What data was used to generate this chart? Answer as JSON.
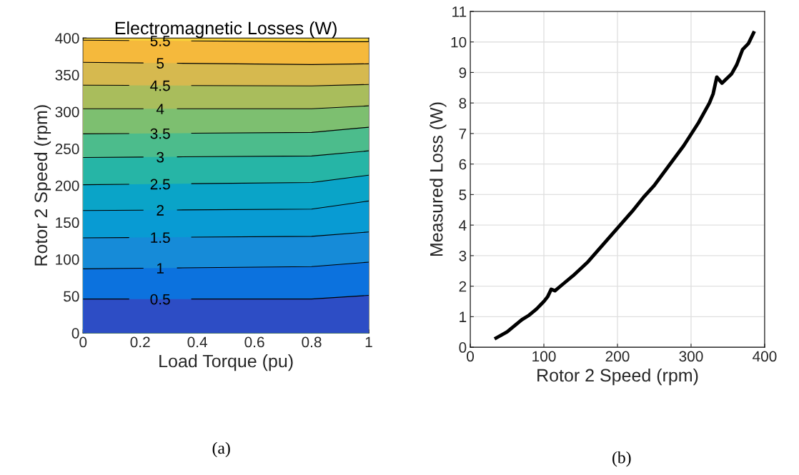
{
  "chart_data": [
    {
      "type": "area",
      "title": "Electromagnetic Losses (W)",
      "xlabel": "Load Torque (pu)",
      "ylabel": "Rotor 2 Speed (rpm)",
      "x": [
        0,
        0.8,
        1
      ],
      "xlim": [
        0,
        1
      ],
      "ylim": [
        0,
        400
      ],
      "xticks": [
        0,
        0.2,
        0.4,
        0.6,
        0.8,
        1
      ],
      "yticks": [
        0,
        50,
        100,
        150,
        200,
        250,
        300,
        350,
        400
      ],
      "grid": false,
      "annotations": [
        "(a)"
      ],
      "series": [
        {
          "color": "#f8d23a",
          "values": [
            400,
            400,
            400
          ]
        },
        {
          "name": "5.5",
          "color": "#f5b93c",
          "values": [
            397,
            395,
            395
          ]
        },
        {
          "name": "5",
          "color": "#d6b94f",
          "values": [
            367,
            364,
            365
          ]
        },
        {
          "name": "4.5",
          "color": "#a9bd5c",
          "values": [
            336,
            335,
            337
          ]
        },
        {
          "name": "4",
          "color": "#7dbf70",
          "values": [
            304,
            304,
            308
          ]
        },
        {
          "name": "3.5",
          "color": "#4cbc8c",
          "values": [
            270,
            272,
            279
          ]
        },
        {
          "name": "3",
          "color": "#26b5a6",
          "values": [
            238,
            240,
            247
          ]
        },
        {
          "name": "2.5",
          "color": "#0aa4c8",
          "values": [
            201,
            204,
            214
          ]
        },
        {
          "name": "2",
          "color": "#089bd3",
          "values": [
            166,
            168,
            179
          ]
        },
        {
          "name": "1.5",
          "color": "#168bd8",
          "values": [
            129,
            131,
            137
          ]
        },
        {
          "name": "1",
          "color": "#0c72de",
          "values": [
            87,
            90,
            96
          ]
        },
        {
          "name": "0.5",
          "color": "#2d4dc5",
          "values": [
            46,
            46,
            51
          ]
        }
      ]
    },
    {
      "type": "line",
      "xlabel": "Rotor 2 Speed (rpm)",
      "ylabel": "Measured Loss (W)",
      "xlim": [
        0,
        400
      ],
      "ylim": [
        0,
        11
      ],
      "xticks": [
        0,
        100,
        200,
        300,
        400
      ],
      "yticks": [
        0,
        1,
        2,
        3,
        4,
        5,
        6,
        7,
        8,
        9,
        10,
        11
      ],
      "grid": true,
      "annotations": [
        "(b)"
      ],
      "series": [
        {
          "color": "#000000",
          "x": [
            35,
            50,
            60,
            70,
            80,
            90,
            100,
            105,
            110,
            115,
            125,
            140,
            160,
            180,
            200,
            220,
            235,
            250,
            270,
            290,
            310,
            325,
            330,
            335,
            342,
            355,
            362,
            370,
            378,
            385
          ],
          "values": [
            0.3,
            0.5,
            0.7,
            0.9,
            1.05,
            1.25,
            1.5,
            1.65,
            1.9,
            1.85,
            2.05,
            2.35,
            2.8,
            3.35,
            3.9,
            4.45,
            4.9,
            5.3,
            5.95,
            6.6,
            7.35,
            8.0,
            8.3,
            8.85,
            8.65,
            8.95,
            9.25,
            9.75,
            9.95,
            10.3
          ]
        }
      ]
    }
  ]
}
